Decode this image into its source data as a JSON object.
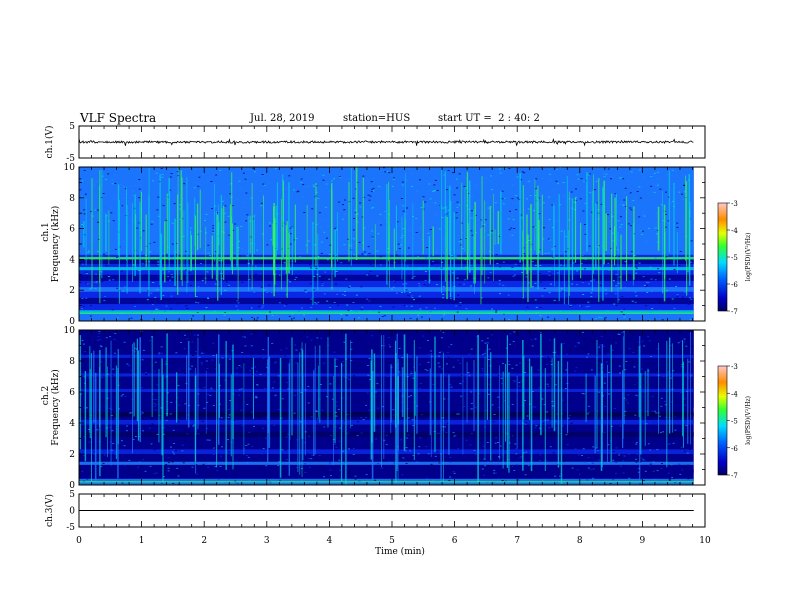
{
  "header": {
    "title": "VLF Spectra",
    "date": "Jul. 28, 2019",
    "station": "station=HUS",
    "start": "start UT =  2 : 40: 2"
  },
  "chart_data": [
    {
      "type": "line",
      "name": "ch1-waveform",
      "ylabel": "ch.1(V)",
      "ylim": [
        -5,
        5
      ],
      "yticks": [
        "5",
        "-5"
      ],
      "xlim": [
        0,
        10
      ],
      "baseline": 0,
      "end_minute": 9.82
    },
    {
      "type": "heatmap",
      "name": "ch1-spectrogram",
      "ylabel_top": "ch.1",
      "ylabel": "Frequency (kHz)",
      "ylim": [
        0,
        10
      ],
      "yticks": [
        "0",
        "2",
        "4",
        "6",
        "8",
        "10"
      ],
      "xlim": [
        0,
        10
      ],
      "end_minute": 9.82,
      "colorbar": {
        "label": "log(PSD)(V²/Hz)",
        "range": [
          -7,
          -3
        ],
        "ticks": [
          "-3",
          "-4",
          "-5",
          "-6",
          "-7"
        ]
      }
    },
    {
      "type": "heatmap",
      "name": "ch2-spectrogram",
      "ylabel_top": "ch.2",
      "ylabel": "Frequency (kHz)",
      "ylim": [
        0,
        10
      ],
      "yticks": [
        "0",
        "2",
        "4",
        "6",
        "8",
        "10"
      ],
      "xlim": [
        0,
        10
      ],
      "end_minute": 9.82,
      "colorbar": {
        "label": "log(PSD)(V²/Hz)",
        "range": [
          -7,
          -3
        ],
        "ticks": [
          "-3",
          "-4",
          "-5",
          "-6",
          "-7"
        ]
      }
    },
    {
      "type": "line",
      "name": "ch3-waveform",
      "ylabel": "ch.3(V)",
      "ylim": [
        -5,
        5
      ],
      "yticks": [
        "5",
        "0",
        "-5"
      ],
      "xlim": [
        0,
        10
      ],
      "baseline": 0,
      "end_minute": 9.82
    }
  ],
  "xaxis": {
    "label": "Time (min)",
    "ticks": [
      "0",
      "1",
      "2",
      "3",
      "4",
      "5",
      "6",
      "7",
      "8",
      "9",
      "10"
    ]
  },
  "colors": {
    "dark": "#00008c",
    "blue": "#0a28e6",
    "light": "#1e82ff",
    "cyan": "#00d2dc",
    "green": "#32ff50"
  }
}
